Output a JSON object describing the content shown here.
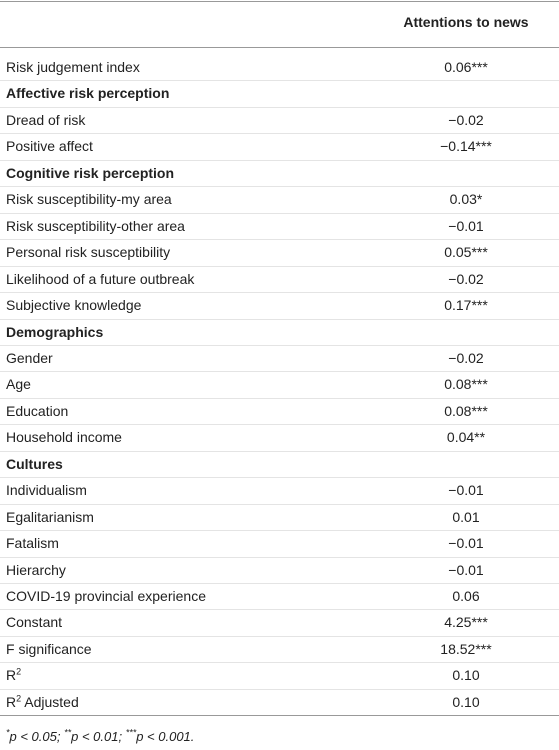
{
  "table": {
    "header": {
      "column": "Attentions to news"
    },
    "rows": [
      {
        "label": "Risk judgement index",
        "value": "0.06***"
      },
      {
        "label": "Affective risk perception",
        "heading": true
      },
      {
        "label": "Dread of risk",
        "value": "−0.02"
      },
      {
        "label": "Positive affect",
        "value": "−0.14***"
      },
      {
        "label": "Cognitive risk perception",
        "heading": true
      },
      {
        "label": "Risk susceptibility-my area",
        "value": "0.03*"
      },
      {
        "label": "Risk susceptibility-other area",
        "value": "−0.01"
      },
      {
        "label": "Personal risk susceptibility",
        "value": "0.05***"
      },
      {
        "label": "Likelihood of a future outbreak",
        "value": "−0.02"
      },
      {
        "label": "Subjective knowledge",
        "value": "0.17***"
      },
      {
        "label": "Demographics",
        "heading": true
      },
      {
        "label": "Gender",
        "value": "−0.02"
      },
      {
        "label": "Age",
        "value": "0.08***"
      },
      {
        "label": "Education",
        "value": "0.08***"
      },
      {
        "label": "Household income",
        "value": "0.04**"
      },
      {
        "label": "Cultures",
        "heading": true
      },
      {
        "label": "Individualism",
        "value": "−0.01"
      },
      {
        "label": "Egalitarianism",
        "value": "0.01"
      },
      {
        "label": "Fatalism",
        "value": "−0.01"
      },
      {
        "label": "Hierarchy",
        "value": "−0.01"
      },
      {
        "label": "COVID-19 provincial experience",
        "value": "0.06"
      },
      {
        "label": "Constant",
        "value": "4.25***"
      },
      {
        "label": "F significance",
        "value": "18.52***"
      },
      {
        "label": "R",
        "label_sup": "2",
        "value": "0.10"
      },
      {
        "label": "R",
        "label_sup": "2",
        "label_rest": " Adjusted",
        "value": "0.10"
      }
    ],
    "footnote": [
      {
        "sup": "*"
      },
      {
        "text": "p < 0.05; "
      },
      {
        "sup": "**"
      },
      {
        "text": "p < 0.01; "
      },
      {
        "sup": "***"
      },
      {
        "text": "p < 0.001."
      }
    ]
  }
}
